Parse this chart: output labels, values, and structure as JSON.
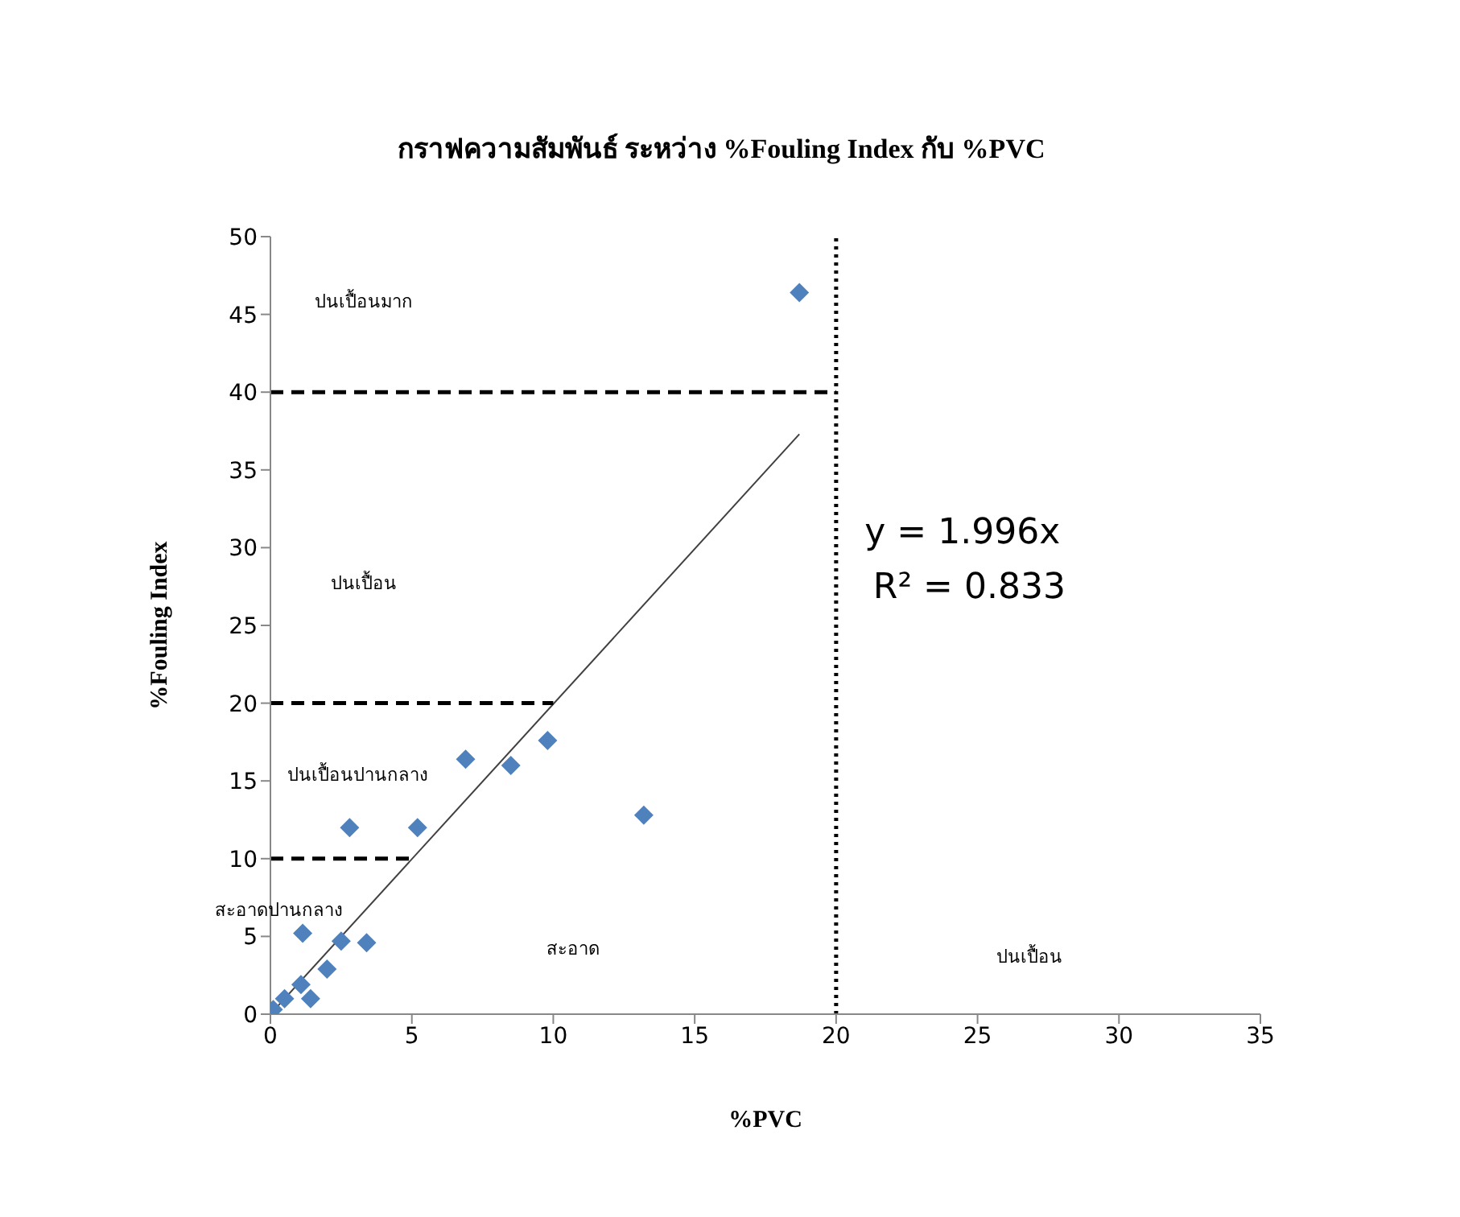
{
  "chart_data": {
    "type": "scatter",
    "title": "กราฟความสัมพันธ์ ระหว่าง %Fouling Index กับ %PVC",
    "xlabel": "%PVC",
    "ylabel": "%Fouling Index",
    "xlim": [
      0,
      35
    ],
    "xticks": [
      0,
      5,
      10,
      15,
      20,
      25,
      30,
      35
    ],
    "ylim": [
      0,
      50
    ],
    "yticks": [
      0,
      5,
      10,
      15,
      20,
      25,
      30,
      35,
      40,
      45,
      50
    ],
    "grid": false,
    "legend": false,
    "marker": "diamond",
    "series": [
      {
        "color": "#4f81bd",
        "x": [
          0.1,
          0.5,
          1.08,
          1.42,
          2.0,
          1.14,
          2.5,
          3.4,
          2.8,
          5.2,
          6.9,
          8.5,
          9.8,
          13.2,
          18.7
        ],
        "values": [
          0.3,
          1.0,
          1.9,
          1.0,
          2.9,
          5.2,
          4.7,
          4.6,
          12.0,
          12.0,
          16.4,
          16.0,
          17.6,
          12.8,
          46.4
        ]
      },
      {
        "type": "line",
        "color": "#404040",
        "marker": "none",
        "line_style": "solid",
        "x": [
          0,
          18.7
        ],
        "values": [
          0,
          37.3
        ]
      },
      {
        "type": "line",
        "color": "#000000",
        "marker": "none",
        "line_style": "dashed",
        "x": [
          0,
          20
        ],
        "values": [
          40,
          40
        ]
      },
      {
        "type": "line",
        "color": "#000000",
        "marker": "none",
        "line_style": "dashed",
        "x": [
          0,
          10
        ],
        "values": [
          20,
          20
        ]
      },
      {
        "type": "line",
        "color": "#000000",
        "marker": "none",
        "line_style": "dashed",
        "x": [
          0,
          5
        ],
        "values": [
          10,
          10
        ]
      }
    ],
    "ref_lines": [
      {
        "axis": "x",
        "value": 20,
        "color": "#000000",
        "line_style": "dotted"
      }
    ],
    "annotations": [
      "ปนเปื้อนมาก",
      "ปนเปื้อน",
      "ปนเปื้อนปานกลาง",
      "สะอาดปานกลาง",
      "สะอาด",
      "ปนเปื้อน",
      "y = 1.996x",
      "R² = 0.833"
    ]
  }
}
